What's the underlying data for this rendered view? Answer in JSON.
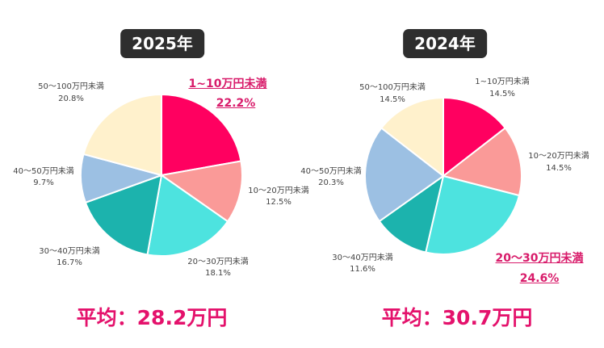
{
  "chart_data": [
    {
      "type": "pie",
      "title": "2025年",
      "average": "平均：28.2万円",
      "categories": [
        "1~10万円未満",
        "10～20万円未満",
        "20～30万円未満",
        "30～40万円未満",
        "40～50万円未満",
        "50～100万円未満"
      ],
      "values": [
        22.2,
        12.5,
        18.1,
        16.7,
        9.7,
        20.8
      ],
      "value_labels": [
        "22.2%",
        "12.5%",
        "18.1%",
        "16.7%",
        "9.7%",
        "20.8%"
      ],
      "highlighted": "1~10万円未満"
    },
    {
      "type": "pie",
      "title": "2024年",
      "average": "平均：30.7万円",
      "categories": [
        "1~10万円未満",
        "10～20万円未満",
        "20～30万円未満",
        "30～40万円未満",
        "40～50万円未満",
        "50～100万円未満"
      ],
      "values": [
        14.5,
        14.5,
        24.6,
        11.6,
        20.3,
        14.5
      ],
      "value_labels": [
        "14.5%",
        "14.5%",
        "24.6%",
        "11.6%",
        "20.3%",
        "14.5%"
      ],
      "highlighted": "20～30万円未満"
    }
  ],
  "colors": [
    "#ff0060",
    "#fa9a98",
    "#4de3df",
    "#1cb3ad",
    "#9cc0e3",
    "#fff1cc"
  ],
  "highlight_color": "#d81b6a"
}
